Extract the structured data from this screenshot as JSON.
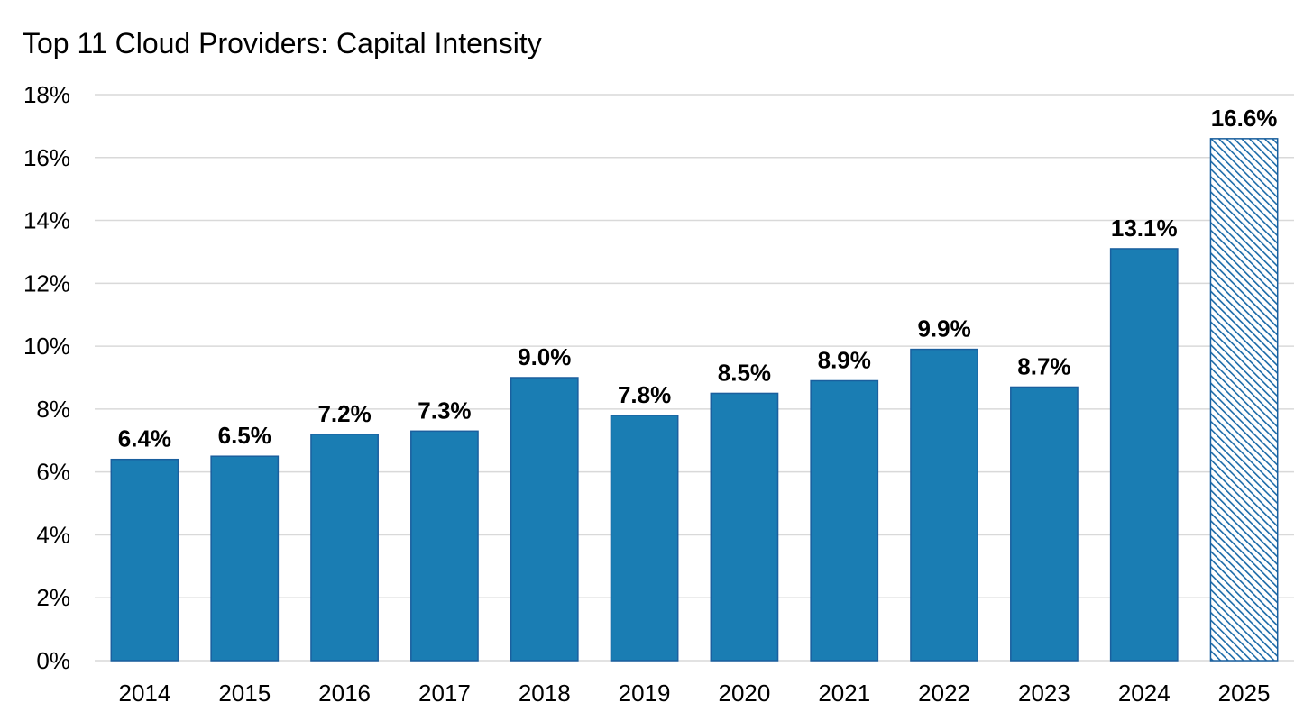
{
  "chart_data": {
    "type": "bar",
    "title": "Top 11 Cloud Providers: Capital Intensity",
    "xlabel": "",
    "ylabel": "",
    "categories": [
      "2014",
      "2015",
      "2016",
      "2017",
      "2018",
      "2019",
      "2020",
      "2021",
      "2022",
      "2023",
      "2024",
      "2025"
    ],
    "values": [
      6.4,
      6.5,
      7.2,
      7.3,
      9.0,
      7.8,
      8.5,
      8.9,
      9.9,
      8.7,
      13.1,
      16.6
    ],
    "data_labels": [
      "6.4%",
      "6.5%",
      "7.2%",
      "7.3%",
      "9.0%",
      "7.8%",
      "8.5%",
      "8.9%",
      "9.9%",
      "8.7%",
      "13.1%",
      "16.6%"
    ],
    "hatched": [
      false,
      false,
      false,
      false,
      false,
      false,
      false,
      false,
      false,
      false,
      false,
      true
    ],
    "ylim": [
      0,
      18
    ],
    "y_ticks": [
      "0%",
      "2%",
      "4%",
      "6%",
      "8%",
      "10%",
      "12%",
      "14%",
      "16%",
      "18%"
    ],
    "y_tick_values": [
      0,
      2,
      4,
      6,
      8,
      10,
      12,
      14,
      16,
      18
    ],
    "grid": true,
    "legend": "none",
    "colors": {
      "bar": "#1a7db3",
      "bar_edge": "#1a5f9e",
      "hatch": "#1a6aa8",
      "grid": "#d9d9d9"
    }
  }
}
